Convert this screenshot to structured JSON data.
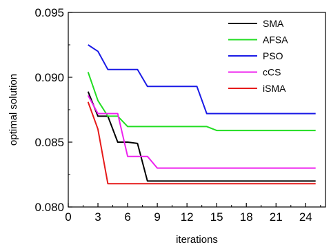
{
  "chart_data": {
    "type": "line",
    "xlabel": "iterations",
    "ylabel": "optimal solution",
    "xlim": [
      0,
      26
    ],
    "ylim": [
      0.08,
      0.095
    ],
    "xticks": [
      0,
      3,
      6,
      9,
      12,
      15,
      18,
      21,
      24
    ],
    "xtick_labels": [
      "0",
      "3",
      "6",
      "9",
      "12",
      "15",
      "18",
      "21",
      "24"
    ],
    "yticks": [
      0.08,
      0.085,
      0.09,
      0.095
    ],
    "ytick_labels": [
      "0.080",
      "0.085",
      "0.090",
      "0.095"
    ],
    "legend_position": "top-right",
    "grid": false,
    "series": [
      {
        "name": "SMA",
        "color": "#000000",
        "points": [
          [
            2,
            0.0889
          ],
          [
            3,
            0.087
          ],
          [
            4,
            0.087
          ],
          [
            5,
            0.085
          ],
          [
            6,
            0.085
          ],
          [
            7,
            0.0849
          ],
          [
            8,
            0.082
          ],
          [
            25,
            0.082
          ]
        ]
      },
      {
        "name": "AFSA",
        "color": "#22dd22",
        "points": [
          [
            2,
            0.0904
          ],
          [
            3,
            0.0882
          ],
          [
            4,
            0.087
          ],
          [
            5,
            0.087
          ],
          [
            6,
            0.0862
          ],
          [
            14,
            0.0862
          ],
          [
            15,
            0.0859
          ],
          [
            25,
            0.0859
          ]
        ]
      },
      {
        "name": "PSO",
        "color": "#1a1ae6",
        "points": [
          [
            2,
            0.0925
          ],
          [
            3,
            0.092
          ],
          [
            4,
            0.0906
          ],
          [
            7,
            0.0906
          ],
          [
            8,
            0.0893
          ],
          [
            13,
            0.0893
          ],
          [
            14,
            0.0872
          ],
          [
            25,
            0.0872
          ]
        ]
      },
      {
        "name": "cCS",
        "color": "#ee22ee",
        "points": [
          [
            2,
            0.0886
          ],
          [
            3,
            0.0872
          ],
          [
            5,
            0.0872
          ],
          [
            6,
            0.0839
          ],
          [
            8,
            0.0839
          ],
          [
            9,
            0.083
          ],
          [
            25,
            0.083
          ]
        ]
      },
      {
        "name": "iSMA",
        "color": "#e61a1a",
        "points": [
          [
            2,
            0.0881
          ],
          [
            3,
            0.086
          ],
          [
            4,
            0.0818
          ],
          [
            25,
            0.0818
          ]
        ]
      }
    ]
  }
}
